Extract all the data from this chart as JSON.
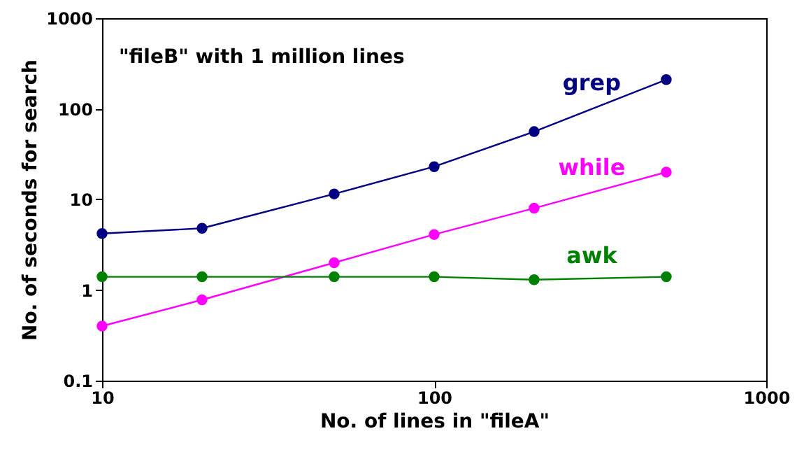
{
  "chart_data": {
    "type": "line",
    "title": "\"fileB\" with 1 million lines",
    "xlabel": "No. of lines in \"fileA\"",
    "ylabel": "No. of seconds for search",
    "x": [
      10,
      20,
      50,
      100,
      200,
      500
    ],
    "series": [
      {
        "name": "grep",
        "color": "#000080",
        "values": [
          4.2,
          4.8,
          11.5,
          23,
          56,
          210
        ]
      },
      {
        "name": "while",
        "color": "#ff00ff",
        "values": [
          0.4,
          0.78,
          2.0,
          4.1,
          8.0,
          20
        ]
      },
      {
        "name": "awk",
        "color": "#008000",
        "values": [
          1.4,
          1.4,
          1.4,
          1.4,
          1.3,
          1.4
        ]
      }
    ],
    "log": "xy",
    "xlim": [
      10,
      1000
    ],
    "ylim": [
      0.1,
      1000
    ],
    "xticks": [
      10,
      100,
      {
        "value": 1000,
        "label": "1000"
      }
    ],
    "yticks": [
      0.1,
      1,
      10,
      100,
      1000
    ],
    "grid": false,
    "marker": "circle",
    "line_style": "solid"
  }
}
